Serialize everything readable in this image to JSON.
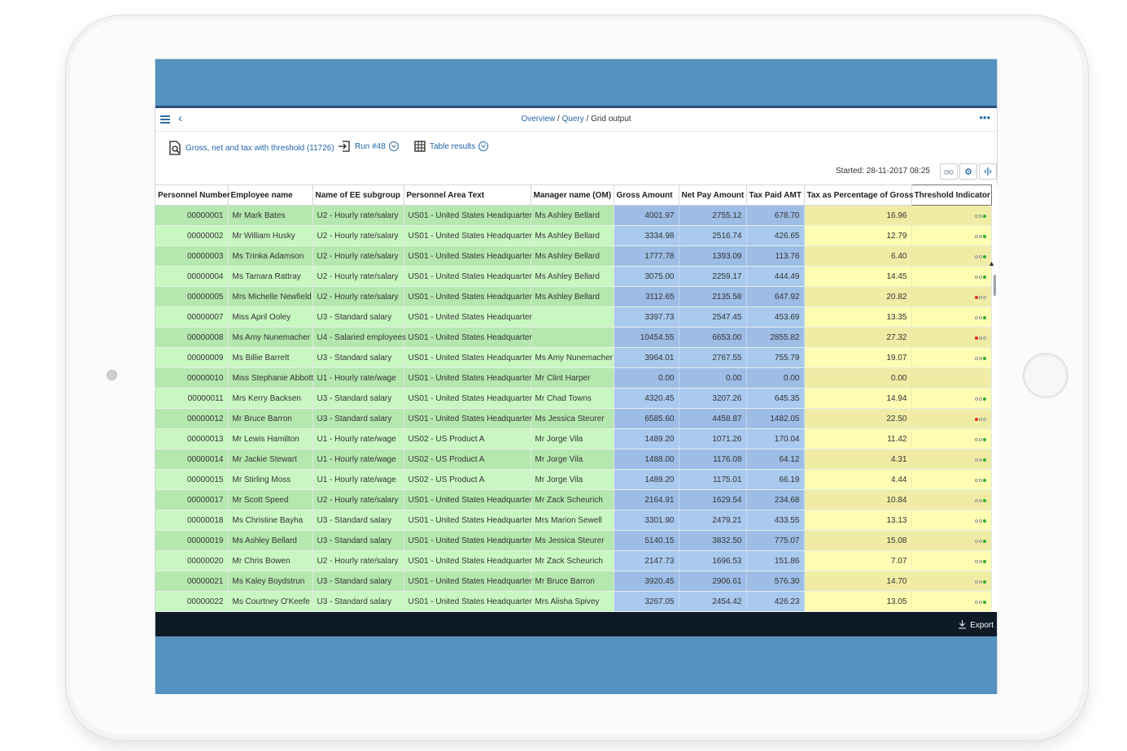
{
  "breadcrumb": {
    "overview": "Overview",
    "sep1": " / ",
    "query": "Query",
    "sep2": " / ",
    "current": "Grid output"
  },
  "toolbar": {
    "query_label": "Gross, net and tax with threshold (11726)",
    "run_label": "Run #48",
    "view_label": "Table results"
  },
  "started": "Started: 28-11-2017 08:25",
  "icons": {
    "menu": "menu-icon",
    "back": "back-icon",
    "more": "more-icon",
    "query": "query-doc-icon",
    "run": "run-icon",
    "table": "table-icon",
    "binoculars": "binoculars-icon",
    "settings": "settings-icon",
    "columns": "columns-icon",
    "export": "download-icon"
  },
  "colors": {
    "green": "#c9f7c2",
    "blue": "#a9c9ef",
    "yellow": "#fffcb4",
    "indicator_green": "#2fb12f",
    "indicator_red": "#e22b2b",
    "footer": "#0e1a26",
    "frame_blue": "#5592bf"
  },
  "columns": [
    "Personnel Number",
    "Employee name",
    "Name of EE subgroup",
    "Personnel Area Text",
    "Manager name (OM)",
    "Gross Amount",
    "Net Pay Amount",
    "Tax Paid AMT",
    "Tax as Percentage of Gross",
    "Threshold Indicator"
  ],
  "rows": [
    {
      "pn": "00000001",
      "name": "Mr Mark Bates",
      "sub": "U2 - Hourly rate/salary",
      "area": "US01 - United States Headquarter",
      "mgr": "Ms Ashley Bellard",
      "gross": "4001.97",
      "net": "2755.12",
      "tax": "678.70",
      "pct": "16.96",
      "ind": "green"
    },
    {
      "pn": "00000002",
      "name": "Mr William Husky",
      "sub": "U2 - Hourly rate/salary",
      "area": "US01 - United States Headquarter",
      "mgr": "Ms Ashley Bellard",
      "gross": "3334.98",
      "net": "2516.74",
      "tax": "426.65",
      "pct": "12.79",
      "ind": "green"
    },
    {
      "pn": "00000003",
      "name": "Ms Trinka Adamson",
      "sub": "U2 - Hourly rate/salary",
      "area": "US01 - United States Headquarter",
      "mgr": "Ms Ashley Bellard",
      "gross": "1777.78",
      "net": "1393.09",
      "tax": "113.76",
      "pct": "6.40",
      "ind": "green"
    },
    {
      "pn": "00000004",
      "name": "Ms Tamara Rattray",
      "sub": "U2 - Hourly rate/salary",
      "area": "US01 - United States Headquarter",
      "mgr": "Ms Ashley Bellard",
      "gross": "3075.00",
      "net": "2259.17",
      "tax": "444.49",
      "pct": "14.45",
      "ind": "green"
    },
    {
      "pn": "00000005",
      "name": "Mrs Michelle Newfield",
      "sub": "U2 - Hourly rate/salary",
      "area": "US01 - United States Headquarter",
      "mgr": "Ms Ashley Bellard",
      "gross": "3112.65",
      "net": "2135.58",
      "tax": "647.92",
      "pct": "20.82",
      "ind": "red"
    },
    {
      "pn": "00000007",
      "name": "Miss April Ooley",
      "sub": "U3 - Standard salary",
      "area": "US01 - United States Headquarter",
      "mgr": "",
      "gross": "3397.73",
      "net": "2547.45",
      "tax": "453.69",
      "pct": "13.35",
      "ind": "green"
    },
    {
      "pn": "00000008",
      "name": "Ms Amy Nunemacher",
      "sub": "U4 - Salaried employees",
      "area": "US01 - United States Headquarter",
      "mgr": "",
      "gross": "10454.55",
      "net": "6653.00",
      "tax": "2855.82",
      "pct": "27.32",
      "ind": "red"
    },
    {
      "pn": "00000009",
      "name": "Ms Billie Barrett",
      "sub": "U3 - Standard salary",
      "area": "US01 - United States Headquarter",
      "mgr": "Ms Amy Nunemacher",
      "gross": "3964.01",
      "net": "2767.55",
      "tax": "755.79",
      "pct": "19.07",
      "ind": "green"
    },
    {
      "pn": "00000010",
      "name": "Miss Stephanie Abbott",
      "sub": "U1 - Hourly rate/wage",
      "area": "US01 - United States Headquarter",
      "mgr": "Mr Clint Harper",
      "gross": "0.00",
      "net": "0.00",
      "tax": "0.00",
      "pct": "0.00",
      "ind": "none"
    },
    {
      "pn": "00000011",
      "name": "Mrs Kerry Backsen",
      "sub": "U3 - Standard salary",
      "area": "US01 - United States Headquarter",
      "mgr": "Mr Chad Towns",
      "gross": "4320.45",
      "net": "3207.26",
      "tax": "645.35",
      "pct": "14.94",
      "ind": "green"
    },
    {
      "pn": "00000012",
      "name": "Mr Bruce Barron",
      "sub": "U3 - Standard salary",
      "area": "US01 - United States Headquarter",
      "mgr": "Ms Jessica Steurer",
      "gross": "6585.60",
      "net": "4458.87",
      "tax": "1482.05",
      "pct": "22.50",
      "ind": "red"
    },
    {
      "pn": "00000013",
      "name": "Mr Lewis Hamilton",
      "sub": "U1 - Hourly rate/wage",
      "area": "US02 - US Product A",
      "mgr": "Mr Jorge Vila",
      "gross": "1489.20",
      "net": "1071.26",
      "tax": "170.04",
      "pct": "11.42",
      "ind": "green"
    },
    {
      "pn": "00000014",
      "name": "Mr Jackie Stewart",
      "sub": "U1 - Hourly rate/wage",
      "area": "US02 - US Product A",
      "mgr": "Mr Jorge Vila",
      "gross": "1488.00",
      "net": "1176.08",
      "tax": "64.12",
      "pct": "4.31",
      "ind": "green"
    },
    {
      "pn": "00000015",
      "name": "Mr Stirling Moss",
      "sub": "U1 - Hourly rate/wage",
      "area": "US02 - US Product A",
      "mgr": "Mr Jorge Vila",
      "gross": "1489.20",
      "net": "1175.01",
      "tax": "66.19",
      "pct": "4.44",
      "ind": "green"
    },
    {
      "pn": "00000017",
      "name": "Mr Scott Speed",
      "sub": "U2 - Hourly rate/salary",
      "area": "US01 - United States Headquarter",
      "mgr": "Mr Zack Scheurich",
      "gross": "2164.91",
      "net": "1629.54",
      "tax": "234.68",
      "pct": "10.84",
      "ind": "green"
    },
    {
      "pn": "00000018",
      "name": "Ms Christine Bayha",
      "sub": "U3 - Standard salary",
      "area": "US01 - United States Headquarter",
      "mgr": "Mrs Marion Sewell",
      "gross": "3301.90",
      "net": "2479.21",
      "tax": "433.55",
      "pct": "13.13",
      "ind": "green"
    },
    {
      "pn": "00000019",
      "name": "Ms Ashley Bellard",
      "sub": "U3 - Standard salary",
      "area": "US01 - United States Headquarter",
      "mgr": "Ms Jessica Steurer",
      "gross": "5140.15",
      "net": "3832.50",
      "tax": "775.07",
      "pct": "15.08",
      "ind": "green"
    },
    {
      "pn": "00000020",
      "name": "Mr Chris Bowen",
      "sub": "U2 - Hourly rate/salary",
      "area": "US01 - United States Headquarter",
      "mgr": "Mr Zack Scheurich",
      "gross": "2147.73",
      "net": "1696.53",
      "tax": "151.86",
      "pct": "7.07",
      "ind": "green"
    },
    {
      "pn": "00000021",
      "name": "Ms Kaley Boydstrun",
      "sub": "U3 - Standard salary",
      "area": "US01 - United States Headquarter",
      "mgr": "Mr Bruce Barron",
      "gross": "3920.45",
      "net": "2906.61",
      "tax": "576.30",
      "pct": "14.70",
      "ind": "green"
    },
    {
      "pn": "00000022",
      "name": "Ms Courtney O'Keefe",
      "sub": "U3 - Standard salary",
      "area": "US01 - United States Headquarter",
      "mgr": "Mrs Alisha Spivey",
      "gross": "3267.05",
      "net": "2454.42",
      "tax": "426.23",
      "pct": "13.05",
      "ind": "green"
    }
  ],
  "footer": {
    "export_label": "Export"
  }
}
